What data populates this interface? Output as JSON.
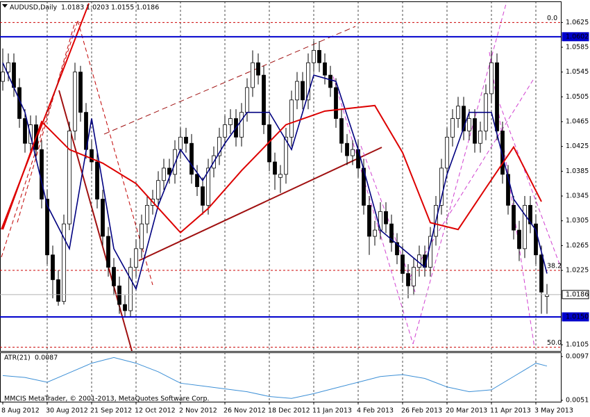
{
  "chart_data": {
    "type": "candlestick",
    "symbol": "AUDUSD,Daily",
    "xlim": [
      -0.5,
      100.5
    ],
    "ylim": [
      1.0095,
      1.0659
    ],
    "yticks": [
      1.0625,
      1.0585,
      1.0545,
      1.0505,
      1.0465,
      1.0425,
      1.0385,
      1.0345,
      1.0305,
      1.0265,
      1.0225,
      1.0105
    ],
    "xticks": [
      {
        "value": 0,
        "label": "8 Aug 2012"
      },
      {
        "value": 8,
        "label": "30 Aug 2012"
      },
      {
        "value": 16,
        "label": "21 Sep 2012"
      },
      {
        "value": 24,
        "label": "12 Oct 2012"
      },
      {
        "value": 32,
        "label": "2 Nov 2012"
      },
      {
        "value": 40,
        "label": "26 Nov 2012"
      },
      {
        "value": 48,
        "label": "18 Dec 2012"
      },
      {
        "value": 56,
        "label": "11 Jan 2013"
      },
      {
        "value": 64,
        "label": "4 Feb 2013"
      },
      {
        "value": 72,
        "label": "26 Feb 2013"
      },
      {
        "value": 80,
        "label": "20 Mar 2013"
      },
      {
        "value": 88,
        "label": "11 Apr 2013"
      },
      {
        "value": 96,
        "label": "3 May 2013"
      }
    ],
    "grid": true,
    "colors": {
      "up": "#ffffff",
      "down": "#000000",
      "outline": "#000000"
    },
    "candles": {
      "open": [
        1.053,
        1.0545,
        1.056,
        1.052,
        1.047,
        1.043,
        1.046,
        1.042,
        1.034,
        1.025,
        1.021,
        1.0175,
        1.03,
        1.045,
        1.0545,
        1.048,
        1.042,
        1.04,
        1.034,
        1.028,
        1.023,
        1.02,
        1.017,
        1.016,
        1.023,
        1.026,
        1.03,
        1.033,
        1.034,
        1.037,
        1.039,
        1.038,
        1.042,
        1.044,
        1.043,
        1.038,
        1.036,
        1.033,
        1.039,
        1.041,
        1.044,
        1.046,
        1.047,
        1.044,
        1.048,
        1.052,
        1.056,
        1.054,
        1.046,
        1.04,
        1.0375,
        1.038,
        1.044,
        1.05,
        1.053,
        1.05,
        1.056,
        1.058,
        1.056,
        1.054,
        1.052,
        1.047,
        1.043,
        1.041,
        1.042,
        1.039,
        1.033,
        1.028,
        1.029,
        1.032,
        1.03,
        1.027,
        1.025,
        1.022,
        1.02,
        1.023,
        1.025,
        1.023,
        1.028,
        1.033,
        1.039,
        1.044,
        1.047,
        1.049,
        1.045,
        1.047,
        1.043,
        1.045,
        1.051,
        1.056,
        1.045,
        1.038,
        1.033,
        1.029,
        1.026,
        1.033,
        1.03,
        1.025,
        1.0183
      ],
      "high": [
        1.0583,
        1.0575,
        1.0575,
        1.0535,
        1.0485,
        1.0475,
        1.0475,
        1.0435,
        1.0355,
        1.0265,
        1.0225,
        1.0315,
        1.0465,
        1.056,
        1.0555,
        1.0495,
        1.0435,
        1.0415,
        1.0355,
        1.0295,
        1.0245,
        1.0215,
        1.0185,
        1.0245,
        1.0275,
        1.0315,
        1.0345,
        1.0355,
        1.0385,
        1.0405,
        1.0405,
        1.0435,
        1.0455,
        1.0455,
        1.0445,
        1.0395,
        1.0375,
        1.0405,
        1.0425,
        1.0455,
        1.0475,
        1.0485,
        1.0485,
        1.0495,
        1.0535,
        1.058,
        1.0575,
        1.0555,
        1.0475,
        1.0415,
        1.0395,
        1.0455,
        1.0515,
        1.0545,
        1.0545,
        1.0575,
        1.0595,
        1.0595,
        1.0575,
        1.0555,
        1.0535,
        1.0485,
        1.0445,
        1.0435,
        1.0435,
        1.0405,
        1.0345,
        1.0305,
        1.0335,
        1.0335,
        1.0315,
        1.0285,
        1.0265,
        1.0235,
        1.0245,
        1.0265,
        1.0265,
        1.0295,
        1.0345,
        1.0405,
        1.0455,
        1.0485,
        1.0505,
        1.0505,
        1.0485,
        1.0485,
        1.0465,
        1.0525,
        1.058,
        1.0575,
        1.0465,
        1.0395,
        1.0345,
        1.0305,
        1.0345,
        1.0345,
        1.0315,
        1.0265,
        1.0203
      ],
      "low": [
        1.0515,
        1.053,
        1.0505,
        1.0455,
        1.0415,
        1.0415,
        1.0405,
        1.0325,
        1.0235,
        1.018,
        1.0168,
        1.017,
        1.029,
        1.0435,
        1.0465,
        1.0405,
        1.0385,
        1.0325,
        1.0265,
        1.0215,
        1.0185,
        1.0155,
        1.015,
        1.015,
        1.0215,
        1.0245,
        1.0285,
        1.0315,
        1.0325,
        1.0355,
        1.0365,
        1.0365,
        1.0405,
        1.0415,
        1.0365,
        1.0345,
        1.0315,
        1.0315,
        1.0375,
        1.0395,
        1.0425,
        1.0445,
        1.0425,
        1.0425,
        1.0465,
        1.0505,
        1.0525,
        1.0445,
        1.0385,
        1.0355,
        1.035,
        1.0365,
        1.0425,
        1.0485,
        1.0485,
        1.0485,
        1.0545,
        1.0545,
        1.0525,
        1.0505,
        1.0455,
        1.0415,
        1.0395,
        1.0395,
        1.0375,
        1.0315,
        1.025,
        1.0265,
        1.0275,
        1.0285,
        1.0255,
        1.0235,
        1.0205,
        1.018,
        1.0185,
        1.0215,
        1.0215,
        1.0215,
        1.0265,
        1.0315,
        1.0375,
        1.0425,
        1.0455,
        1.0435,
        1.0435,
        1.0415,
        1.0415,
        1.0435,
        1.0495,
        1.0435,
        1.0365,
        1.0315,
        1.0275,
        1.024,
        1.0245,
        1.0285,
        1.0235,
        1.0155,
        1.0155
      ],
      "close": [
        1.0545,
        1.056,
        1.052,
        1.047,
        1.043,
        1.046,
        1.042,
        1.034,
        1.025,
        1.021,
        1.0175,
        1.03,
        1.045,
        1.0545,
        1.048,
        1.042,
        1.04,
        1.034,
        1.028,
        1.023,
        1.02,
        1.017,
        1.016,
        1.023,
        1.026,
        1.03,
        1.033,
        1.034,
        1.037,
        1.039,
        1.038,
        1.042,
        1.044,
        1.043,
        1.038,
        1.036,
        1.033,
        1.039,
        1.041,
        1.044,
        1.046,
        1.047,
        1.044,
        1.048,
        1.052,
        1.056,
        1.054,
        1.046,
        1.04,
        1.038,
        1.038,
        1.044,
        1.05,
        1.053,
        1.05,
        1.056,
        1.058,
        1.056,
        1.054,
        1.052,
        1.047,
        1.043,
        1.041,
        1.042,
        1.039,
        1.033,
        1.028,
        1.029,
        1.032,
        1.03,
        1.027,
        1.025,
        1.022,
        1.02,
        1.023,
        1.025,
        1.023,
        1.028,
        1.033,
        1.039,
        1.044,
        1.047,
        1.049,
        1.045,
        1.047,
        1.043,
        1.045,
        1.051,
        1.056,
        1.045,
        1.038,
        1.033,
        1.029,
        1.026,
        1.033,
        1.03,
        1.025,
        1.019,
        1.0186
      ]
    },
    "moving_averages": [
      {
        "color": "#000080",
        "x": [
          0,
          4,
          8,
          12,
          16,
          20,
          24,
          28,
          32,
          36,
          40,
          44,
          48,
          52,
          56,
          60,
          64,
          68,
          72,
          76,
          80,
          84,
          88,
          92,
          96,
          98
        ],
        "values": [
          1.056,
          1.048,
          1.033,
          1.026,
          1.047,
          1.026,
          1.0195,
          1.033,
          1.042,
          1.037,
          1.043,
          1.048,
          1.048,
          1.042,
          1.054,
          1.053,
          1.042,
          1.029,
          1.026,
          1.023,
          1.038,
          1.048,
          1.048,
          1.034,
          1.029,
          1.022
        ]
      },
      {
        "color": "#dd0000",
        "x": [
          0,
          7,
          12,
          18,
          24,
          32,
          37,
          43,
          51,
          58,
          67,
          72,
          77,
          82,
          87,
          92,
          97
        ],
        "values": [
          1.0291,
          1.0465,
          1.042,
          1.0398,
          1.0365,
          1.0286,
          1.0325,
          1.0386,
          1.046,
          1.0482,
          1.0491,
          1.0415,
          1.0302,
          1.0291,
          1.0358,
          1.0424,
          1.0336
        ]
      }
    ],
    "hlines": [
      {
        "price": 1.0602,
        "color": "#0000cc"
      },
      {
        "price": {
          "value": 1.015,
          "label": "1.0150"
        },
        "color": "#0000cc"
      },
      {
        "price": 1.0186,
        "color": "#b0b0b0"
      }
    ],
    "fibo_color": "#cc0000",
    "fibo": [
      {
        "label": "0.0",
        "price": 1.0625
      },
      {
        "label": "38.2",
        "price": 1.0225
      },
      {
        "label": "50.0",
        "price": 1.0101
      }
    ],
    "indicator": {
      "title": "ATR(21)",
      "value": 0.0087,
      "color": "#3c8fd6",
      "ylim": [
        0.00495,
        0.01014
      ],
      "yticks": [
        0.0097,
        0.0051
      ],
      "x": [
        0,
        4,
        8,
        12,
        16,
        20,
        24,
        28,
        32,
        36,
        40,
        44,
        48,
        52,
        56,
        60,
        64,
        68,
        72,
        76,
        80,
        84,
        88,
        92,
        96,
        98
      ],
      "values": [
        0.0077,
        0.0075,
        0.007,
        0.008,
        0.009,
        0.0096,
        0.009,
        0.0081,
        0.0069,
        0.0066,
        0.0063,
        0.006,
        0.0055,
        0.0053,
        0.0058,
        0.0064,
        0.007,
        0.0076,
        0.0078,
        0.0074,
        0.0065,
        0.006,
        0.0062,
        0.0076,
        0.009,
        0.0087
      ]
    },
    "copyright": "MMCIS MetaTrader, © 2001-2013, MetaQuotes Software Corp."
  }
}
